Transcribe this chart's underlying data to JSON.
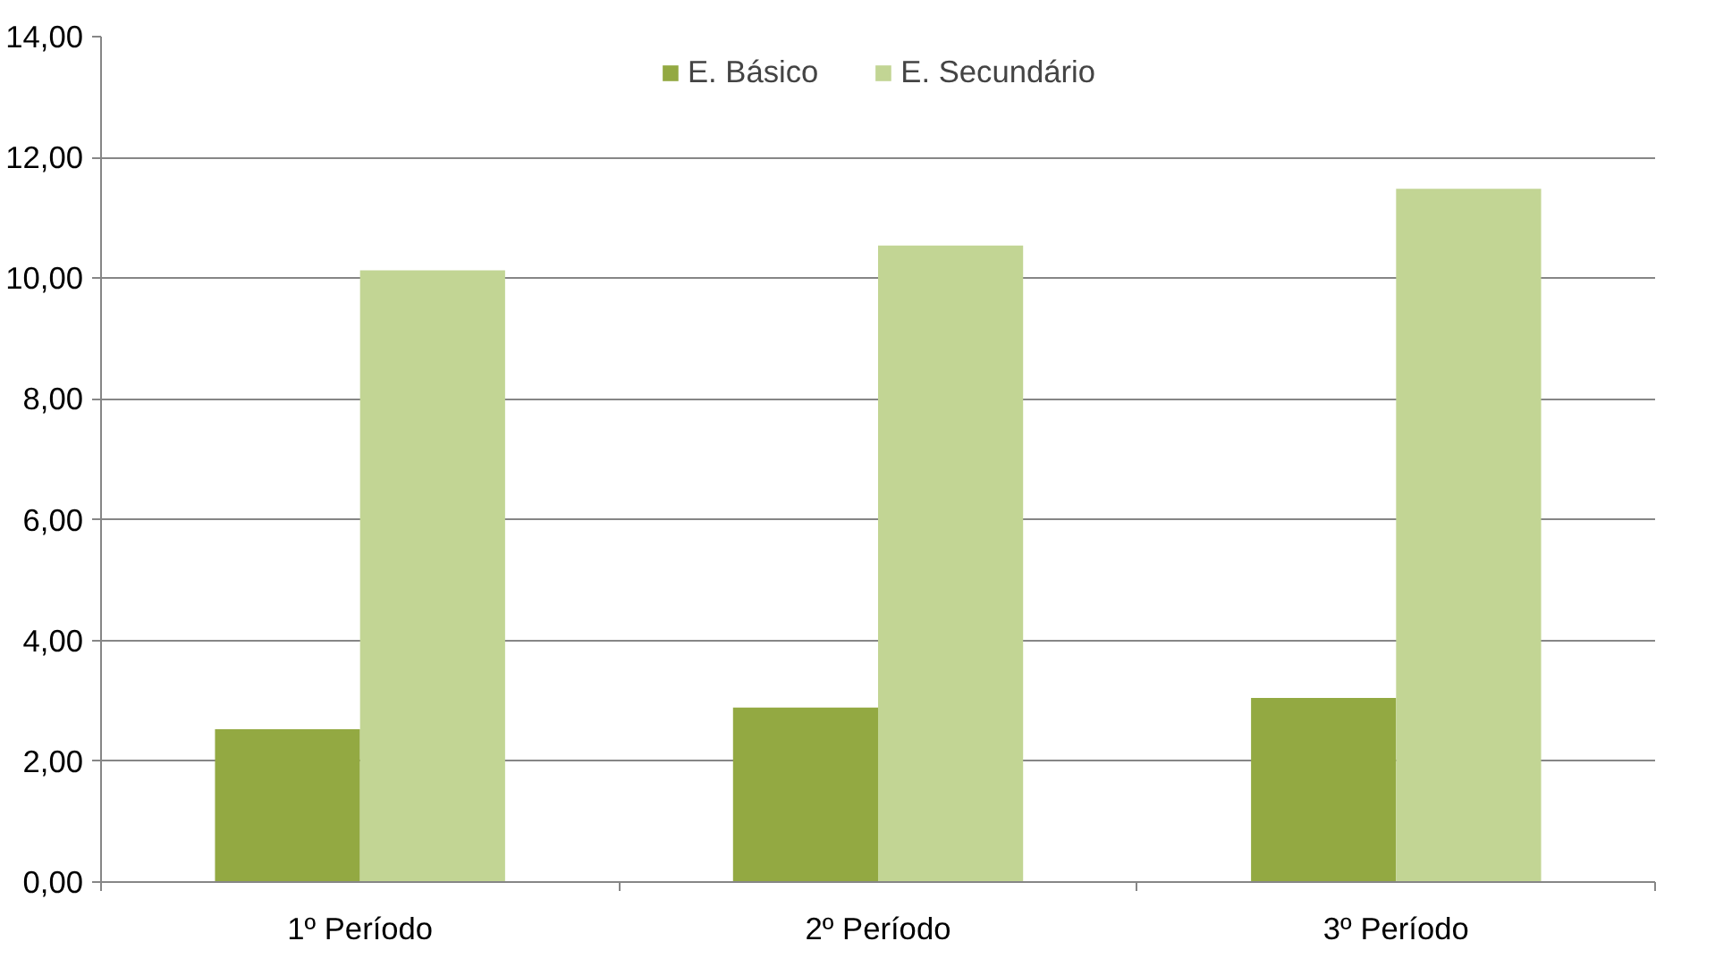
{
  "chart_data": {
    "type": "bar",
    "categories": [
      "1º Período",
      "2º Período",
      "3º Período"
    ],
    "series": [
      {
        "name": "E. Básico",
        "color": "#93a942",
        "values": [
          2.53,
          2.89,
          3.05
        ]
      },
      {
        "name": "E. Secundário",
        "color": "#c2d594",
        "values": [
          10.13,
          10.54,
          11.48
        ]
      }
    ],
    "ylim": [
      0,
      14
    ],
    "yticks": [
      {
        "value": 0,
        "label": "0,00"
      },
      {
        "value": 2,
        "label": "2,00"
      },
      {
        "value": 4,
        "label": "4,00"
      },
      {
        "value": 6,
        "label": "6,00"
      },
      {
        "value": 8,
        "label": "8,00"
      },
      {
        "value": 10,
        "label": "10,00"
      },
      {
        "value": 12,
        "label": "12,00"
      },
      {
        "value": 14,
        "label": "14,00"
      }
    ],
    "grid": "y",
    "legend": "top"
  }
}
